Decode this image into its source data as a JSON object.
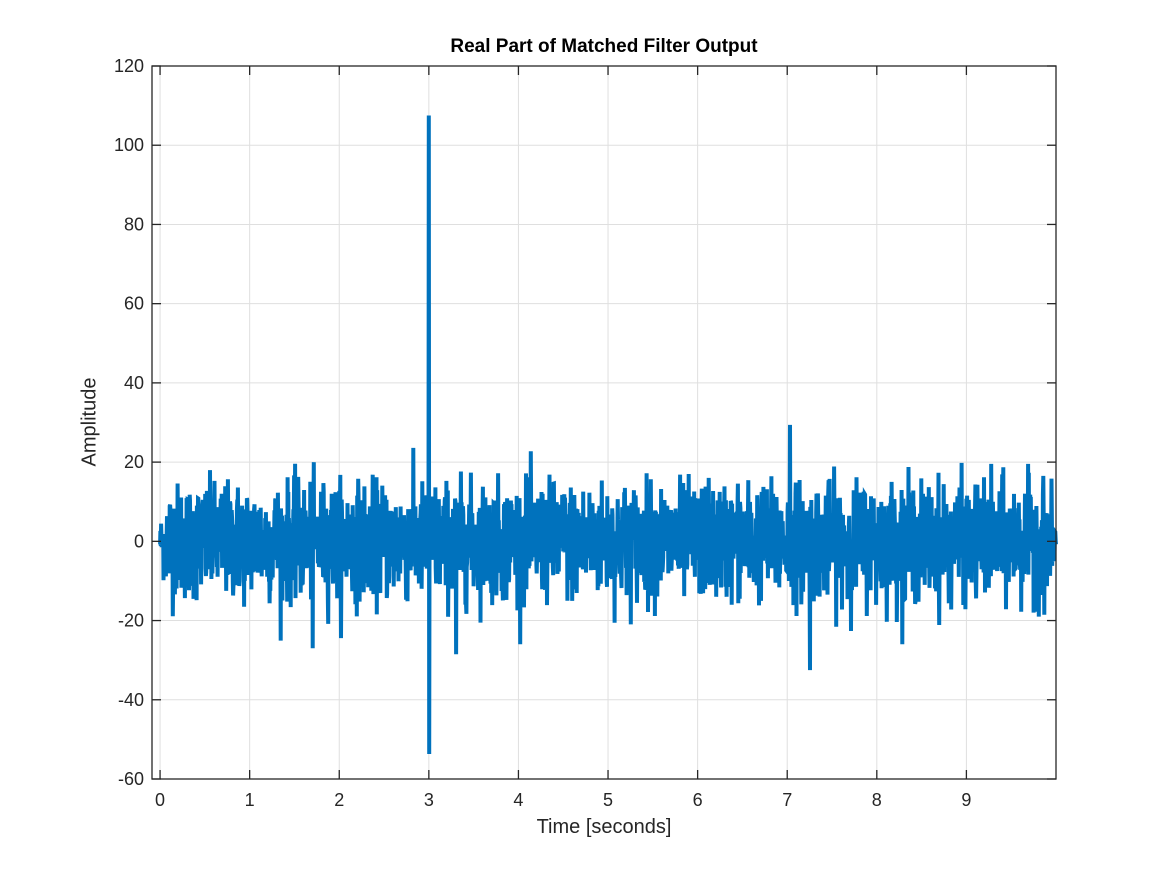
{
  "figure": {
    "title": "Real Part of Matched Filter Output",
    "xlabel": "Time [seconds]",
    "ylabel": "Amplitude",
    "line_color": "#0072BD",
    "grid_color": "#DFDFDF",
    "axis_color": "#262626"
  },
  "chart_data": {
    "type": "line",
    "title": "Real Part of Matched Filter Output",
    "xlabel": "Time [seconds]",
    "ylabel": "Amplitude",
    "xlim": [
      -0.09,
      10.0
    ],
    "ylim": [
      -60,
      120
    ],
    "xticks": [
      0,
      1,
      2,
      3,
      4,
      5,
      6,
      7,
      8,
      9
    ],
    "yticks": [
      -60,
      -40,
      -20,
      0,
      20,
      40,
      60,
      80,
      100,
      120
    ],
    "grid": true,
    "legend": null,
    "series": [
      {
        "name": "Real Part of Matched Filter Output",
        "description": "Dense noise-like signal centered at 0, solid core roughly -12 to +12, peaks typically reaching about +/-25, with a strong matched-filter peak at t=3 s",
        "noise_core_amplitude": 12,
        "noise_peak_amplitude": 25,
        "features": [
          {
            "t": 3.0,
            "value": 107.5,
            "label": "main positive peak"
          },
          {
            "t": 3.0,
            "value": -53.7,
            "label": "main negative peak"
          },
          {
            "t": 7.03,
            "value": 29.4,
            "label": "noise spike"
          },
          {
            "t": 7.25,
            "value": -32.5,
            "label": "noise spike"
          },
          {
            "t": 1.7,
            "value": -27.0,
            "label": "noise spike"
          },
          {
            "t": 3.3,
            "value": -28.5,
            "label": "noise spike"
          }
        ]
      }
    ]
  }
}
